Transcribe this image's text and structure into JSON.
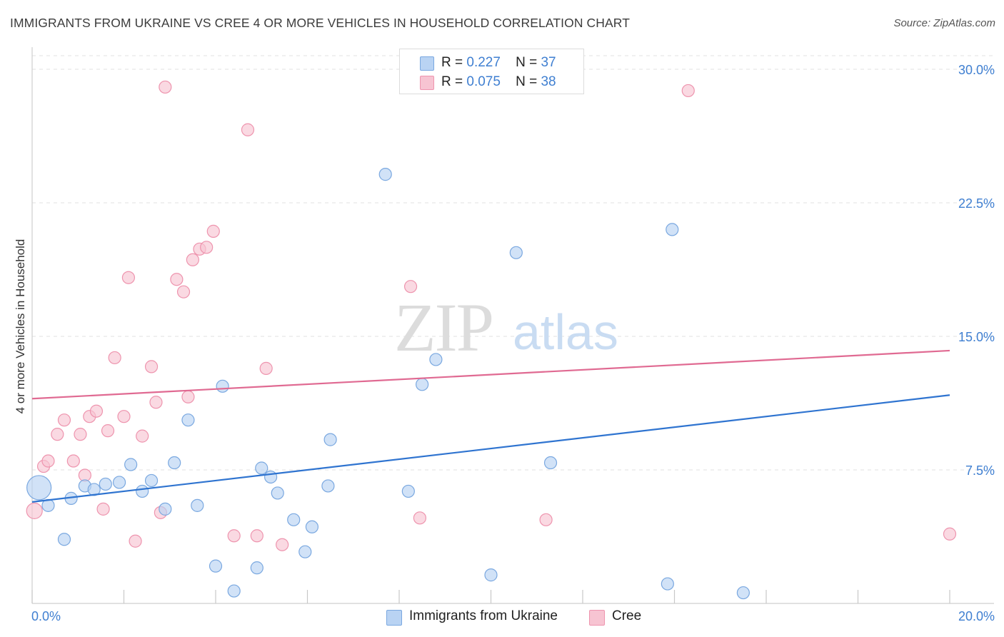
{
  "title": "IMMIGRANTS FROM UKRAINE VS CREE 4 OR MORE VEHICLES IN HOUSEHOLD CORRELATION CHART",
  "source": "Source: ZipAtlas.com",
  "watermark": {
    "zip": "ZIP",
    "atlas": "atlas"
  },
  "legend": {
    "r_label": "R =",
    "n_label": "N =",
    "rows": [
      {
        "r": "0.227",
        "n": "37"
      },
      {
        "r": "0.075",
        "n": "38"
      }
    ]
  },
  "bottom_legend": [
    "Immigrants from Ukraine",
    "Cree"
  ],
  "colors": {
    "blue_fill": "#b9d3f3",
    "blue_stroke": "#7aa8e0",
    "blue_line": "#2f74d0",
    "pink_fill": "#f7c4d2",
    "pink_stroke": "#ee94ae",
    "pink_line": "#e06a92",
    "tick_text": "#3f7fd1"
  },
  "chart_data": {
    "type": "scatter",
    "title": "IMMIGRANTS FROM UKRAINE VS CREE 4 OR MORE VEHICLES IN HOUSEHOLD CORRELATION CHART",
    "xlabel": "",
    "ylabel": "4 or more Vehicles in Household",
    "xlim": [
      0,
      20
    ],
    "ylim": [
      0,
      30
    ],
    "x_tick_labels": [
      "0.0%",
      "20.0%"
    ],
    "y_ticks": [
      7.5,
      15.0,
      22.5,
      30.0
    ],
    "y_tick_labels": [
      "7.5%",
      "15.0%",
      "22.5%",
      "30.0%"
    ],
    "grid": true,
    "series": [
      {
        "name": "Immigrants from Ukraine",
        "r": 0.227,
        "n": 37,
        "trend": [
          [
            0,
            5.7
          ],
          [
            20,
            11.7
          ]
        ],
        "points": [
          [
            0.15,
            6.5
          ],
          [
            0.35,
            5.5
          ],
          [
            0.7,
            3.6
          ],
          [
            0.85,
            5.9
          ],
          [
            1.15,
            6.6
          ],
          [
            1.35,
            6.4
          ],
          [
            1.6,
            6.7
          ],
          [
            1.9,
            6.8
          ],
          [
            2.15,
            7.8
          ],
          [
            2.4,
            6.3
          ],
          [
            2.6,
            6.9
          ],
          [
            2.9,
            5.3
          ],
          [
            3.1,
            7.9
          ],
          [
            3.6,
            5.5
          ],
          [
            3.4,
            10.3
          ],
          [
            4.0,
            2.1
          ],
          [
            4.15,
            12.2
          ],
          [
            4.4,
            0.7
          ],
          [
            4.9,
            2.0
          ],
          [
            5.0,
            7.6
          ],
          [
            5.2,
            7.1
          ],
          [
            5.35,
            6.2
          ],
          [
            5.7,
            4.7
          ],
          [
            5.95,
            2.9
          ],
          [
            6.1,
            4.3
          ],
          [
            6.45,
            6.6
          ],
          [
            6.5,
            9.2
          ],
          [
            7.7,
            24.1
          ],
          [
            8.2,
            6.3
          ],
          [
            8.5,
            12.3
          ],
          [
            8.8,
            13.7
          ],
          [
            10.0,
            1.6
          ],
          [
            10.55,
            19.7
          ],
          [
            11.3,
            7.9
          ],
          [
            13.85,
            1.1
          ],
          [
            13.95,
            21.0
          ],
          [
            15.5,
            0.6
          ]
        ]
      },
      {
        "name": "Cree",
        "r": 0.075,
        "n": 38,
        "trend": [
          [
            0,
            11.5
          ],
          [
            20,
            14.2
          ]
        ],
        "points": [
          [
            0.05,
            5.2
          ],
          [
            0.25,
            7.7
          ],
          [
            0.35,
            8.0
          ],
          [
            0.55,
            9.5
          ],
          [
            0.7,
            10.3
          ],
          [
            0.9,
            8.0
          ],
          [
            1.05,
            9.5
          ],
          [
            1.15,
            7.2
          ],
          [
            1.25,
            10.5
          ],
          [
            1.4,
            10.8
          ],
          [
            1.55,
            5.3
          ],
          [
            1.65,
            9.7
          ],
          [
            1.8,
            13.8
          ],
          [
            2.0,
            10.5
          ],
          [
            2.1,
            18.3
          ],
          [
            2.25,
            3.5
          ],
          [
            2.4,
            9.4
          ],
          [
            2.6,
            13.3
          ],
          [
            2.7,
            11.3
          ],
          [
            2.8,
            5.1
          ],
          [
            2.9,
            29.0
          ],
          [
            3.15,
            18.2
          ],
          [
            3.3,
            17.5
          ],
          [
            3.4,
            11.6
          ],
          [
            3.5,
            19.3
          ],
          [
            3.65,
            19.9
          ],
          [
            3.8,
            20.0
          ],
          [
            3.95,
            20.9
          ],
          [
            4.4,
            3.8
          ],
          [
            4.7,
            26.6
          ],
          [
            4.9,
            3.8
          ],
          [
            5.1,
            13.2
          ],
          [
            5.45,
            3.3
          ],
          [
            8.25,
            17.8
          ],
          [
            8.45,
            4.8
          ],
          [
            11.2,
            4.7
          ],
          [
            14.3,
            28.8
          ],
          [
            20.0,
            3.9
          ]
        ]
      }
    ]
  }
}
